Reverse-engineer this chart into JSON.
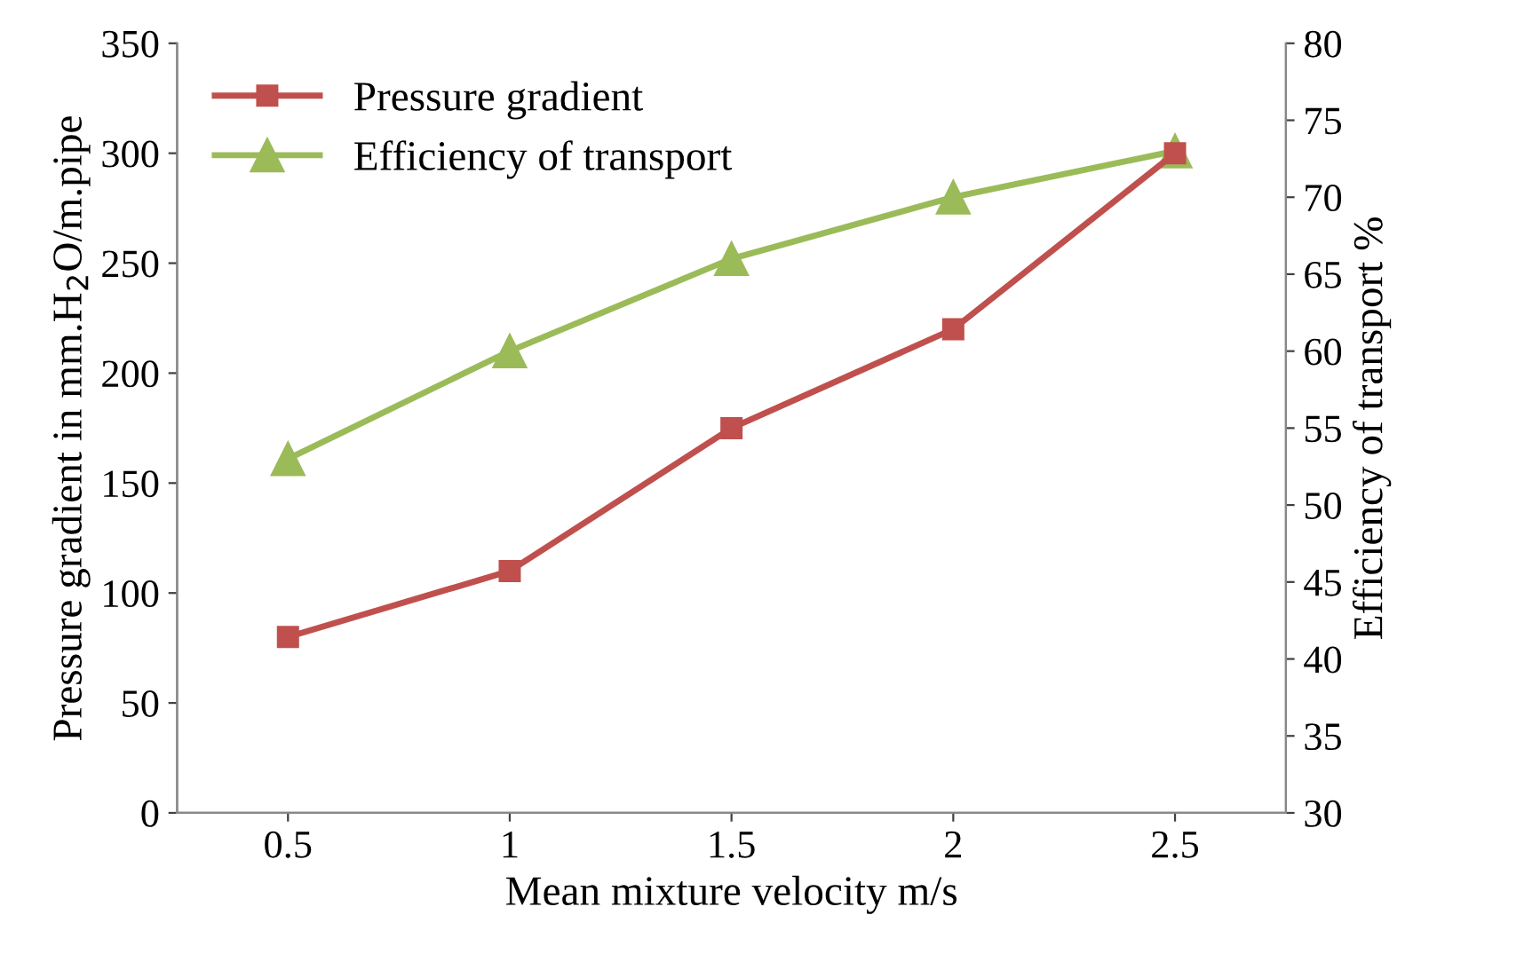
{
  "chart_data": {
    "type": "line",
    "xlabel": "Mean mixture velocity m/s",
    "ylabel": "Pressure gradient in mm.H$_{2}$O/m.pipe",
    "y2label": "Efficiency of transport %",
    "categories": [
      "0.5",
      "1",
      "1.5",
      "2",
      "2.5"
    ],
    "series": [
      {
        "name": "Pressure gradient",
        "color": "#c0504d",
        "values": [
          80,
          110,
          175,
          220,
          300
        ],
        "marker": "square"
      },
      {
        "name": "Efficiency of transport",
        "color": "#9bbb59",
        "values": [
          53,
          60,
          66,
          70,
          73
        ],
        "axis": "y2",
        "marker": "triangle"
      }
    ],
    "ylim": [
      0,
      350
    ],
    "yticks": [
      0,
      50,
      100,
      150,
      200,
      250,
      300,
      350
    ],
    "y2lim": [
      30,
      80
    ],
    "y2ticks": [
      30,
      35,
      40,
      45,
      50,
      55,
      60,
      65,
      70,
      75,
      80
    ],
    "grid": false,
    "legend": "top left",
    "line_style": "solid"
  }
}
